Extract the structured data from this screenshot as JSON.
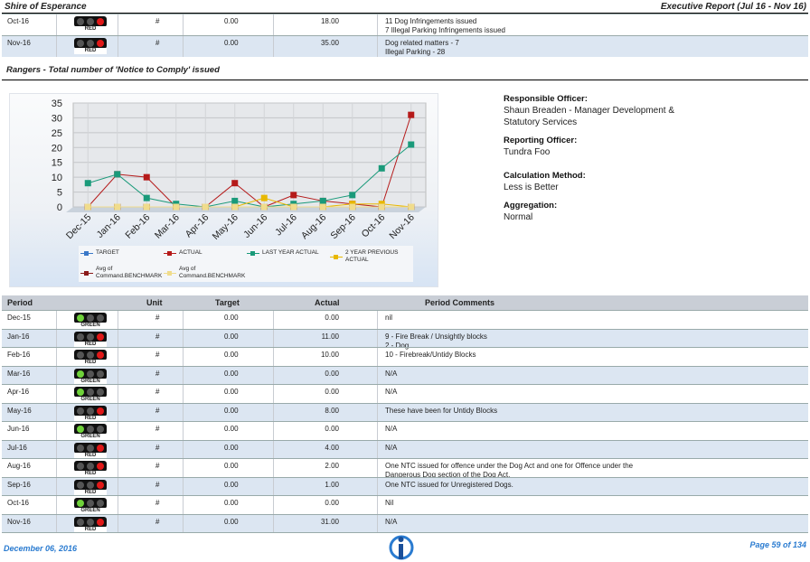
{
  "header": {
    "title": "Shire of Esperance",
    "report": "Executive Report (Jul 16 - Nov 16)"
  },
  "top_rows": [
    {
      "period": "Oct-16",
      "status": "RED",
      "unit": "#",
      "target": "0.00",
      "actual": "18.00",
      "comments": [
        "11 Dog Infringements issued",
        "7 Illegal Parking Infringements issued"
      ]
    },
    {
      "period": "Nov-16",
      "status": "RED",
      "unit": "#",
      "target": "0.00",
      "actual": "35.00",
      "comments": [
        "Dog related matters - 7",
        "Illegal Parking - 28"
      ]
    }
  ],
  "section_title": "Rangers - Total number of 'Notice to Comply' issued",
  "chart_data": {
    "type": "line",
    "categories": [
      "Dec-15",
      "Jan-16",
      "Feb-16",
      "Mar-16",
      "Apr-16",
      "May-16",
      "Jun-16",
      "Jul-16",
      "Aug-16",
      "Sep-16",
      "Oct-16",
      "Nov-16"
    ],
    "series": [
      {
        "name": "TARGET",
        "color": "#3a78c8",
        "values": [
          0,
          0,
          0,
          0,
          0,
          0,
          0,
          0,
          0,
          0,
          0,
          0
        ]
      },
      {
        "name": "ACTUAL",
        "color": "#b51a1a",
        "values": [
          0,
          11,
          10,
          0,
          0,
          8,
          0,
          4,
          2,
          1,
          0,
          31
        ]
      },
      {
        "name": "LAST YEAR ACTUAL",
        "color": "#1a9a7a",
        "values": [
          8,
          11,
          3,
          1,
          0,
          2,
          0,
          1,
          2,
          4,
          13,
          21
        ]
      },
      {
        "name": "2 YEAR PREVIOUS ACTUAL",
        "color": "#e8b800",
        "values": [
          0,
          0,
          0,
          0,
          0,
          0,
          3,
          0,
          0,
          1,
          1,
          0
        ]
      },
      {
        "name": "Avg of Command.BENCHMARK",
        "color": "#8b1a1a",
        "values": [
          0,
          0,
          0,
          0,
          0,
          0,
          0,
          0,
          0,
          0,
          0,
          0
        ]
      },
      {
        "name": "Avg of Command.BENCHMARK",
        "color": "#f0dc8c",
        "values": [
          0,
          0,
          0,
          0,
          0,
          0,
          0,
          0,
          0,
          0,
          0,
          0
        ]
      }
    ],
    "ylim": [
      0,
      35
    ],
    "yticks": [
      0,
      5,
      10,
      15,
      20,
      25,
      30,
      35
    ],
    "grid": true,
    "legend": "bottom"
  },
  "info": [
    {
      "label": "Responsible Officer:",
      "lines": [
        "Shaun Breaden - Manager Development &",
        "Statutory Services"
      ]
    },
    {
      "label": "Reporting Officer:",
      "lines": [
        "Tundra Foo"
      ]
    },
    {
      "label": "Calculation Method:",
      "lines": [
        "Less is Better"
      ]
    },
    {
      "label": "Aggregation:",
      "lines": [
        "Normal"
      ]
    }
  ],
  "table": {
    "columns": [
      "Period",
      "Unit",
      "Target",
      "Actual",
      "Period Comments"
    ],
    "rows": [
      {
        "period": "Dec-15",
        "status": "GREEN",
        "unit": "#",
        "target": "0.00",
        "actual": "0.00",
        "comments": [
          "nil"
        ]
      },
      {
        "period": "Jan-16",
        "status": "RED",
        "unit": "#",
        "target": "0.00",
        "actual": "11.00",
        "comments": [
          "9 - Fire Break / Unsightly blocks",
          "2 - Dog"
        ]
      },
      {
        "period": "Feb-16",
        "status": "RED",
        "unit": "#",
        "target": "0.00",
        "actual": "10.00",
        "comments": [
          "10 - Firebreak/Untidy Blocks"
        ]
      },
      {
        "period": "Mar-16",
        "status": "GREEN",
        "unit": "#",
        "target": "0.00",
        "actual": "0.00",
        "comments": [
          "N/A"
        ]
      },
      {
        "period": "Apr-16",
        "status": "GREEN",
        "unit": "#",
        "target": "0.00",
        "actual": "0.00",
        "comments": [
          "N/A"
        ]
      },
      {
        "period": "May-16",
        "status": "RED",
        "unit": "#",
        "target": "0.00",
        "actual": "8.00",
        "comments": [
          "These have been for Untidy Blocks"
        ]
      },
      {
        "period": "Jun-16",
        "status": "GREEN",
        "unit": "#",
        "target": "0.00",
        "actual": "0.00",
        "comments": [
          "N/A"
        ]
      },
      {
        "period": "Jul-16",
        "status": "RED",
        "unit": "#",
        "target": "0.00",
        "actual": "4.00",
        "comments": [
          "N/A"
        ]
      },
      {
        "period": "Aug-16",
        "status": "RED",
        "unit": "#",
        "target": "0.00",
        "actual": "2.00",
        "comments": [
          "One NTC issued for offence under the Dog Act and one for Offence under the",
          "Dangerous Dog section of the Dog Act."
        ]
      },
      {
        "period": "Sep-16",
        "status": "RED",
        "unit": "#",
        "target": "0.00",
        "actual": "1.00",
        "comments": [
          "One NTC issued for Unregistered Dogs."
        ]
      },
      {
        "period": "Oct-16",
        "status": "GREEN",
        "unit": "#",
        "target": "0.00",
        "actual": "0.00",
        "comments": [
          "Nil"
        ]
      },
      {
        "period": "Nov-16",
        "status": "RED",
        "unit": "#",
        "target": "0.00",
        "actual": "31.00",
        "comments": [
          "N/A"
        ]
      }
    ]
  },
  "footer": {
    "date": "December 06, 2016",
    "page": "Page 59 of 134"
  }
}
